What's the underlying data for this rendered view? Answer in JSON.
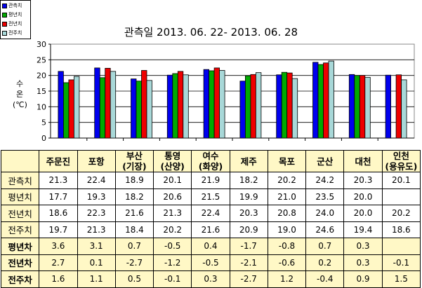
{
  "chart_data": {
    "type": "bar",
    "title": "관측일 2013. 06. 22- 2013. 06. 28",
    "ylabel": [
      "수",
      "온",
      "(℃)"
    ],
    "ylim": [
      0,
      30
    ],
    "yticks": [
      0,
      5,
      10,
      15,
      20,
      25,
      30
    ],
    "grid": true,
    "legend_position": "top-left",
    "categories": [
      "주문진",
      "포항",
      "부산(기장)",
      "통영(산양)",
      "여수(화양)",
      "제주",
      "목포",
      "군산",
      "대천",
      "인천(용유도)"
    ],
    "series": [
      {
        "name": "관측치",
        "color": "#0000ee",
        "values": [
          21.3,
          22.4,
          18.9,
          20.1,
          21.9,
          18.2,
          20.2,
          24.2,
          20.3,
          20.1
        ]
      },
      {
        "name": "평년치",
        "color": "#00aa00",
        "values": [
          17.7,
          19.3,
          18.2,
          20.6,
          21.5,
          19.9,
          21.0,
          23.5,
          20.0,
          null
        ]
      },
      {
        "name": "전년치",
        "color": "#ee0000",
        "values": [
          18.6,
          22.3,
          21.6,
          21.3,
          22.4,
          20.3,
          20.8,
          24.0,
          20.0,
          20.2
        ]
      },
      {
        "name": "전주치",
        "color": "#a8d8d8",
        "values": [
          19.7,
          21.3,
          18.4,
          20.2,
          21.6,
          20.9,
          19.0,
          24.6,
          19.4,
          18.6
        ]
      }
    ]
  },
  "table": {
    "header": [
      [
        "주문진"
      ],
      [
        "포항"
      ],
      [
        "부산",
        "(기장)"
      ],
      [
        "통영",
        "(산양)"
      ],
      [
        "여수",
        "(화양)"
      ],
      [
        "제주"
      ],
      [
        "목포"
      ],
      [
        "군산"
      ],
      [
        "대천"
      ],
      [
        "인천",
        "(용유도)"
      ]
    ],
    "rows": [
      {
        "label": "관측치",
        "kind": "value",
        "cells": [
          "21.3",
          "22.4",
          "18.9",
          "20.1",
          "21.9",
          "18.2",
          "20.2",
          "24.2",
          "20.3",
          "20.1"
        ]
      },
      {
        "label": "평년치",
        "kind": "value",
        "cells": [
          "17.7",
          "19.3",
          "18.2",
          "20.6",
          "21.5",
          "19.9",
          "21.0",
          "23.5",
          "20.0",
          ""
        ]
      },
      {
        "label": "전년치",
        "kind": "value",
        "cells": [
          "18.6",
          "22.3",
          "21.6",
          "21.3",
          "22.4",
          "20.3",
          "20.8",
          "24.0",
          "20.0",
          "20.2"
        ]
      },
      {
        "label": "전주치",
        "kind": "value",
        "cells": [
          "19.7",
          "21.3",
          "18.4",
          "20.2",
          "21.6",
          "20.9",
          "19.0",
          "24.6",
          "19.4",
          "18.6"
        ]
      },
      {
        "label": "평년차",
        "kind": "diff",
        "cells": [
          "3.6",
          "3.1",
          "0.7",
          "-0.5",
          "0.4",
          "-1.7",
          "-0.8",
          "0.7",
          "0.3",
          ""
        ]
      },
      {
        "label": "전년차",
        "kind": "diff",
        "cells": [
          "2.7",
          "0.1",
          "-2.7",
          "-1.2",
          "-0.5",
          "-2.1",
          "-0.6",
          "0.2",
          "0.3",
          "-0.1"
        ]
      },
      {
        "label": "전주차",
        "kind": "diff",
        "cells": [
          "1.6",
          "1.1",
          "0.5",
          "-0.1",
          "0.3",
          "-2.7",
          "1.2",
          "-0.4",
          "0.9",
          "1.5"
        ]
      }
    ]
  }
}
